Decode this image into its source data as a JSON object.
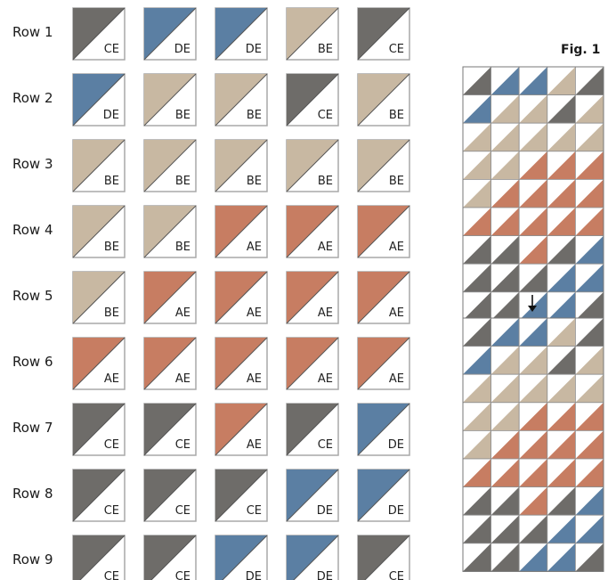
{
  "figure_label": "Fig. 1",
  "colors": {
    "CE": "#6e6c69",
    "DE": "#5b7fa3",
    "BE": "#c8b8a2",
    "AE": "#c77d62",
    "white": "#ffffff",
    "border": "#a9a9a9"
  },
  "rows": [
    {
      "label": "Row 1",
      "blocks": [
        "CE",
        "DE",
        "DE",
        "BE",
        "CE"
      ]
    },
    {
      "label": "Row 2",
      "blocks": [
        "DE",
        "BE",
        "BE",
        "CE",
        "BE"
      ]
    },
    {
      "label": "Row 3",
      "blocks": [
        "BE",
        "BE",
        "BE",
        "BE",
        "BE"
      ]
    },
    {
      "label": "Row 4",
      "blocks": [
        "BE",
        "BE",
        "AE",
        "AE",
        "AE"
      ]
    },
    {
      "label": "Row 5",
      "blocks": [
        "BE",
        "AE",
        "AE",
        "AE",
        "AE"
      ]
    },
    {
      "label": "Row 6",
      "blocks": [
        "AE",
        "AE",
        "AE",
        "AE",
        "AE"
      ]
    },
    {
      "label": "Row 7",
      "blocks": [
        "CE",
        "CE",
        "AE",
        "CE",
        "DE"
      ]
    },
    {
      "label": "Row 8",
      "blocks": [
        "CE",
        "CE",
        "CE",
        "DE",
        "DE"
      ]
    },
    {
      "label": "Row 9",
      "blocks": [
        "CE",
        "CE",
        "DE",
        "DE",
        "CE"
      ]
    }
  ]
}
